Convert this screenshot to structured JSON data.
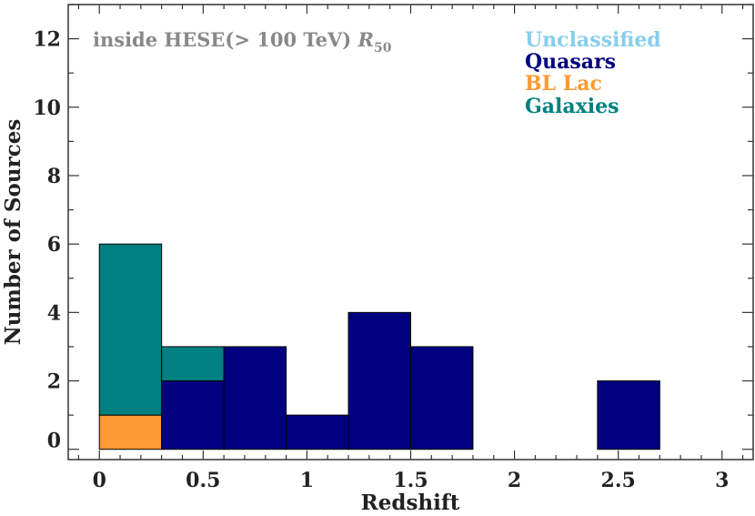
{
  "chart_data": {
    "type": "bar",
    "subtype": "stacked-histogram",
    "xlabel": "Redshift",
    "ylabel": "Number of Sources",
    "xlim": [
      -0.15,
      3.15
    ],
    "ylim": [
      -0.3,
      13
    ],
    "xticks": [
      0,
      0.5,
      1,
      1.5,
      2,
      2.5,
      3
    ],
    "xtick_labels": [
      "0",
      "0.5",
      "1",
      "1.5",
      "2",
      "2.5",
      "3"
    ],
    "yticks": [
      0,
      2,
      4,
      6,
      8,
      10,
      12
    ],
    "ytick_labels": [
      "0",
      "2",
      "4",
      "6",
      "8",
      "10",
      "12"
    ],
    "grid": false,
    "legend_position": "top-right",
    "annotation": {
      "text_main": "inside HESE(> 100 TeV) ",
      "text_symbol": "R",
      "text_subscript": "50",
      "color": "#888888"
    },
    "bin_edges": [
      0,
      0.3,
      0.6,
      0.9,
      1.2,
      1.5,
      1.8,
      2.1,
      2.4,
      2.7,
      3.0
    ],
    "series": [
      {
        "name": "Unclassified",
        "color": "#87CEEB",
        "values": [
          0,
          0,
          0,
          0,
          0,
          0,
          0,
          0,
          0,
          0
        ]
      },
      {
        "name": "Quasars",
        "color": "#000080",
        "values": [
          0,
          2,
          3,
          1,
          4,
          3,
          0,
          0,
          2,
          0
        ]
      },
      {
        "name": "BL Lac",
        "color": "#FF9933",
        "values": [
          1,
          0,
          0,
          0,
          0,
          0,
          0,
          0,
          0,
          0
        ]
      },
      {
        "name": "Galaxies",
        "color": "#008080",
        "values": [
          5,
          1,
          0,
          0,
          0,
          0,
          0,
          0,
          0,
          0
        ]
      }
    ],
    "stack_order": [
      "BL Lac",
      "Quasars",
      "Galaxies",
      "Unclassified"
    ]
  }
}
